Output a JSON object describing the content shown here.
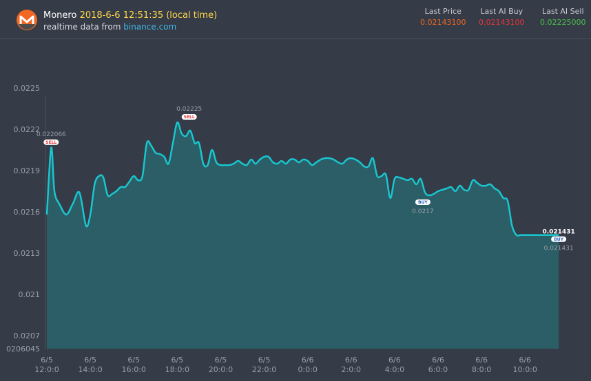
{
  "header": {
    "coin_name": "Monero",
    "timestamp": "2018-6-6 12:51:35 (local time)",
    "source_prefix": "realtime data from",
    "source_link": "binance.com",
    "stats": [
      {
        "label": "Last Price",
        "value": "0.02143100",
        "color": "#f26822"
      },
      {
        "label": "Last AI Buy",
        "value": "0.02143100",
        "color": "#e8363a"
      },
      {
        "label": "Last AI Sell",
        "value": "0.02225000",
        "color": "#4cc24c"
      }
    ]
  },
  "colors": {
    "line": "#19c6cf",
    "area": "#2b5e66",
    "background": "#353b47",
    "logo": "#f26822"
  },
  "chart_data": {
    "type": "area",
    "ylim": [
      0.0206045,
      0.02255
    ],
    "y_ticks": [
      0.0207,
      0.021,
      0.0213,
      0.0216,
      0.0219,
      0.0222,
      0.0225
    ],
    "y_tick_labels": [
      "0.0207",
      "0.021",
      "0.0213",
      "0.0216",
      "0.0219",
      "0.0222",
      "0.0225"
    ],
    "y_min_label": "0206045",
    "xlim": [
      0,
      23.8
    ],
    "x_ticks": [
      {
        "x": 0,
        "date": "6/5",
        "time": "12:0:0"
      },
      {
        "x": 2,
        "date": "6/5",
        "time": "14:0:0"
      },
      {
        "x": 4,
        "date": "6/5",
        "time": "16:0:0"
      },
      {
        "x": 6,
        "date": "6/5",
        "time": "18:0:0"
      },
      {
        "x": 8,
        "date": "6/5",
        "time": "20:0:0"
      },
      {
        "x": 10,
        "date": "6/5",
        "time": "22:0:0"
      },
      {
        "x": 12,
        "date": "6/6",
        "time": "0:0:0"
      },
      {
        "x": 14,
        "date": "6/6",
        "time": "2:0:0"
      },
      {
        "x": 16,
        "date": "6/6",
        "time": "4:0:0"
      },
      {
        "x": 18,
        "date": "6/6",
        "time": "6:0:0"
      },
      {
        "x": 20,
        "date": "6/6",
        "time": "8:0:0"
      },
      {
        "x": 22,
        "date": "6/6",
        "time": "10:0:0"
      }
    ],
    "series": [
      {
        "x": [
          0.0,
          0.2,
          0.35,
          0.6,
          0.9,
          1.2,
          1.5,
          1.8,
          2.0,
          2.2,
          2.4,
          2.6,
          2.8,
          3.0,
          3.2,
          3.4,
          3.6,
          3.8,
          4.0,
          4.2,
          4.4,
          4.6,
          4.8,
          5.0,
          5.2,
          5.4,
          5.6,
          5.8,
          6.0,
          6.2,
          6.4,
          6.6,
          6.8,
          7.0,
          7.2,
          7.4,
          7.6,
          7.8,
          8.0,
          8.2,
          8.4,
          8.6,
          8.8,
          9.0,
          9.2,
          9.4,
          9.6,
          9.8,
          10.0,
          10.2,
          10.4,
          10.6,
          10.8,
          11.0,
          11.2,
          11.4,
          11.6,
          11.8,
          12.0,
          12.2,
          12.4,
          12.6,
          12.8,
          13.0,
          13.2,
          13.4,
          13.6,
          13.8,
          14.0,
          14.2,
          14.4,
          14.6,
          14.8,
          15.0,
          15.2,
          15.4,
          15.6,
          15.8,
          16.0,
          16.2,
          16.4,
          16.6,
          16.8,
          17.0,
          17.2,
          17.4,
          17.6,
          17.8,
          18.0,
          18.2,
          18.4,
          18.6,
          18.8,
          19.0,
          19.2,
          19.4,
          19.6,
          19.8,
          20.0,
          20.2,
          20.4,
          20.6,
          20.8,
          21.0,
          21.2,
          21.4,
          21.6,
          21.8,
          22.0,
          22.2,
          22.4,
          22.6,
          22.8,
          23.0,
          23.2,
          23.4,
          23.55
        ],
        "y": [
          0.02158,
          0.022066,
          0.02175,
          0.02165,
          0.02158,
          0.02166,
          0.02174,
          0.0215,
          0.02158,
          0.0218,
          0.02186,
          0.02185,
          0.02172,
          0.02173,
          0.02175,
          0.02178,
          0.02178,
          0.02182,
          0.02186,
          0.02183,
          0.02186,
          0.0221,
          0.02208,
          0.02203,
          0.02202,
          0.022,
          0.02195,
          0.0221,
          0.02225,
          0.02217,
          0.02215,
          0.02219,
          0.0221,
          0.0221,
          0.02195,
          0.02194,
          0.02205,
          0.02196,
          0.02194,
          0.02194,
          0.02194,
          0.02195,
          0.02197,
          0.02195,
          0.02194,
          0.02198,
          0.02195,
          0.02198,
          0.022,
          0.022,
          0.02196,
          0.02195,
          0.02197,
          0.02195,
          0.02198,
          0.02198,
          0.02196,
          0.02198,
          0.02197,
          0.02194,
          0.02196,
          0.02198,
          0.02199,
          0.02199,
          0.02198,
          0.02196,
          0.02195,
          0.02198,
          0.02199,
          0.02198,
          0.02196,
          0.02193,
          0.02193,
          0.02199,
          0.02186,
          0.02186,
          0.02187,
          0.0217,
          0.02184,
          0.02185,
          0.02184,
          0.02183,
          0.02184,
          0.0218,
          0.02184,
          0.02174,
          0.02172,
          0.02173,
          0.02175,
          0.02176,
          0.02177,
          0.02178,
          0.02175,
          0.02179,
          0.02176,
          0.02176,
          0.02183,
          0.02181,
          0.02179,
          0.02179,
          0.0218,
          0.02177,
          0.02175,
          0.0217,
          0.02168,
          0.0215,
          0.021431,
          0.021431,
          0.021431,
          0.021431,
          0.021431,
          0.021431,
          0.021431,
          0.021431,
          0.021431,
          0.021431,
          0.021431
        ]
      }
    ],
    "annotations": [
      {
        "x": 0.2,
        "y": 0.022066,
        "kind": "SELL",
        "value_label": "0.022066",
        "label_pos": "above"
      },
      {
        "x": 6.55,
        "y": 0.02225,
        "kind": "SELL",
        "value_label": "0.02225",
        "label_pos": "above"
      },
      {
        "x": 17.3,
        "y": 0.0217,
        "kind": "BUY",
        "value_label": "0.0217",
        "label_pos": "below"
      },
      {
        "x": 23.55,
        "y": 0.021431,
        "kind": "BUY",
        "value_label": "0.021431",
        "label_pos": "below"
      }
    ],
    "last_value_label": "0.021431"
  }
}
